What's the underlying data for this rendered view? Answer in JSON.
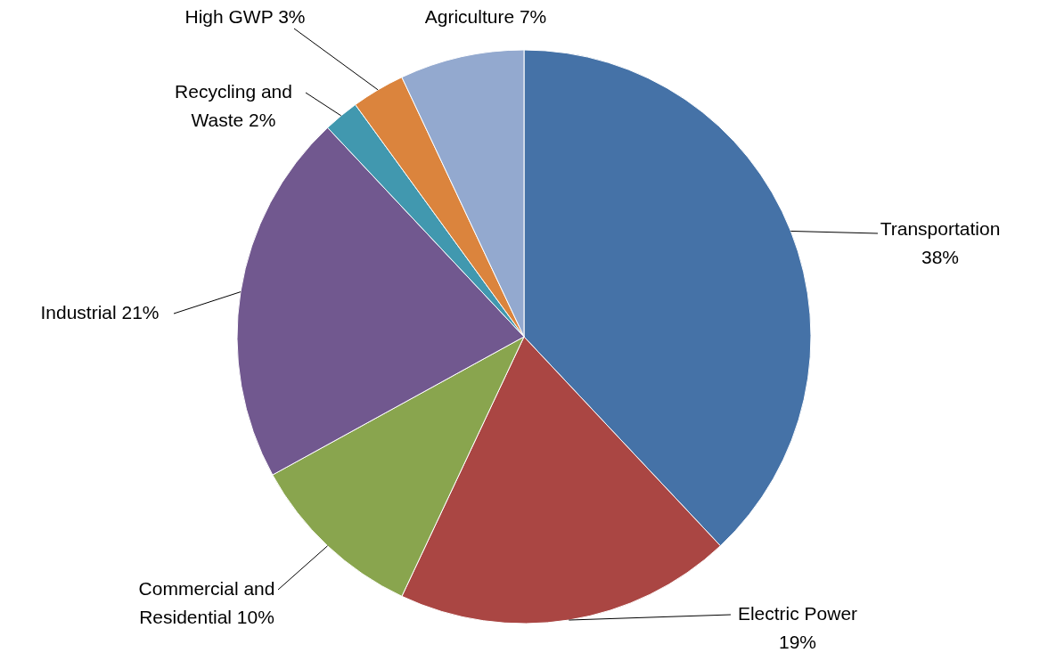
{
  "chart_data": {
    "type": "pie",
    "categories": [
      "Transportation",
      "Electric Power",
      "Commercial and Residential",
      "Industrial",
      "Recycling and Waste",
      "High GWP",
      "Agriculture"
    ],
    "values": [
      38,
      19,
      10,
      21,
      2,
      3,
      7
    ],
    "value_labels": [
      "38%",
      "19%",
      "10%",
      "21%",
      "2%",
      "3%",
      "7%"
    ],
    "colors": [
      "#4572a7",
      "#aa4643",
      "#89a54e",
      "#71588f",
      "#4198af",
      "#db843d",
      "#93a9cf"
    ]
  }
}
